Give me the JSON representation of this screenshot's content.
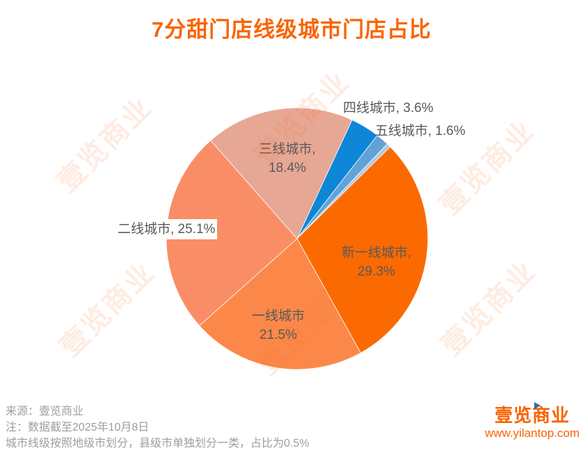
{
  "title": "7分甜门店线级城市门店占比",
  "watermark": {
    "text": "壹览商业"
  },
  "chart_data": {
    "type": "pie",
    "title": "7分甜门店线级城市门店占比",
    "start_angle_deg": 45.4,
    "direction": "clockwise",
    "legend_position": "none",
    "slices": [
      {
        "id": "new-first-tier",
        "name": "新一线城市",
        "value": 29.3,
        "color": "#FB6A01"
      },
      {
        "id": "first-tier",
        "name": "一线城市",
        "value": 21.5,
        "color": "#FB8849"
      },
      {
        "id": "second-tier",
        "name": "二线城市",
        "value": 25.1,
        "color": "#F98E66"
      },
      {
        "id": "third-tier",
        "name": "三线城市",
        "value": 18.4,
        "color": "#E7A795"
      },
      {
        "id": "fourth-tier",
        "name": "四线城市",
        "value": 3.6,
        "color": "#0E86D8"
      },
      {
        "id": "fifth-tier",
        "name": "五线城市",
        "value": 1.6,
        "color": "#61A3D6"
      },
      {
        "id": "county-level",
        "name": "县级市",
        "value": 0.5,
        "color": "#B0C9DE"
      }
    ],
    "labels": {
      "new_first_line1": "新一线城市,",
      "new_first_line2": "29.3%",
      "first_line1": "一线城市",
      "first_line2": "21.5%",
      "second": "二线城市, 25.1%",
      "third_line1": "三线城市,",
      "third_line2": "18.4%",
      "fourth": "四线城市, 3.6%",
      "fifth": "五线城市, 1.6%"
    }
  },
  "footer": {
    "source": "来源：壹览商业",
    "note1": "注：数据截至2025年10月8日",
    "note2": "城市线级按照地级市划分，县级市单独划分一类，占比为0.5%",
    "brand": "壹览商业",
    "website": "www.yilantop.com"
  },
  "colors": {
    "title": "#FA6400",
    "brand": "#F96301",
    "label_text": "#595959",
    "note_text": "#9E9E9E",
    "watermark": "#F96E1F"
  }
}
